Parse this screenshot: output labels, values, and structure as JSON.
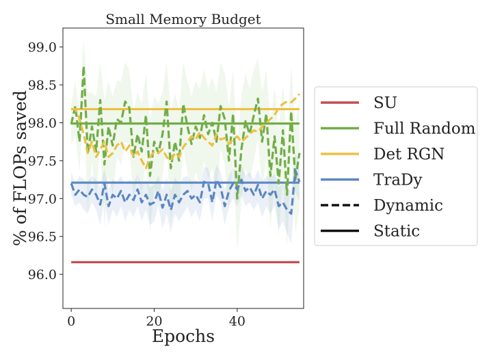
{
  "chart_data": {
    "type": "line",
    "title": "Small Memory Budget",
    "xlabel": "Epochs",
    "ylabel": "% of FLOPs saved",
    "xlim": [
      -2,
      56
    ],
    "ylim": [
      95.55,
      99.25
    ],
    "xticks": [
      0,
      20,
      40
    ],
    "xtick_labels": [
      "0",
      "20",
      "40"
    ],
    "yticks": [
      96.0,
      96.5,
      97.0,
      97.5,
      98.0,
      98.5,
      99.0
    ],
    "ytick_labels": [
      "96.0",
      "96.5",
      "97.0",
      "97.5",
      "98.0",
      "98.5",
      "99.0"
    ],
    "grid": false,
    "legend_position": "right-outside",
    "colors": {
      "SU": "#c44e52",
      "Full Random": "#70ad47",
      "Det RGN": "#edc044",
      "TraDy": "#5b86c2",
      "line_style_key": "#111111"
    },
    "legend": [
      {
        "label": "SU",
        "color": "#c44e52",
        "style": "solid"
      },
      {
        "label": "Full Random",
        "color": "#70ad47",
        "style": "solid"
      },
      {
        "label": "Det RGN",
        "color": "#edc044",
        "style": "solid"
      },
      {
        "label": "TraDy",
        "color": "#5b86c2",
        "style": "solid"
      },
      {
        "label": "Dynamic",
        "color": "#111111",
        "style": "dashed"
      },
      {
        "label": "Static",
        "color": "#111111",
        "style": "solid"
      }
    ],
    "static_series": [
      {
        "name": "SU",
        "style": "solid",
        "x": [
          0,
          55
        ],
        "y": [
          96.16,
          96.16
        ]
      },
      {
        "name": "Full Random",
        "style": "solid",
        "x": [
          0,
          55
        ],
        "y": [
          97.99,
          97.99
        ]
      },
      {
        "name": "Det RGN",
        "style": "solid",
        "x": [
          0,
          55
        ],
        "y": [
          98.18,
          98.18
        ]
      },
      {
        "name": "TraDy",
        "style": "solid",
        "x": [
          0,
          55
        ],
        "y": [
          97.21,
          97.21
        ]
      }
    ],
    "dynamic_series": [
      {
        "name": "Full Random",
        "style": "dashed",
        "x_start": 0,
        "x_step": 1,
        "y": [
          97.98,
          98.22,
          97.75,
          98.75,
          97.6,
          97.95,
          97.62,
          98.3,
          97.45,
          97.95,
          97.7,
          98.05,
          98.0,
          98.28,
          98.2,
          97.55,
          97.85,
          97.62,
          98.1,
          97.3,
          97.75,
          97.6,
          97.85,
          98.28,
          97.4,
          97.75,
          97.5,
          98.25,
          97.95,
          97.72,
          97.95,
          97.8,
          98.1,
          97.85,
          98.0,
          97.75,
          98.22,
          98.05,
          97.5,
          98.12,
          97.0,
          97.65,
          98.02,
          97.85,
          98.1,
          98.32,
          97.75,
          98.12,
          97.3,
          97.82,
          97.2,
          97.9,
          97.05,
          98.15,
          97.25,
          97.6
        ]
      },
      {
        "name": "Det RGN",
        "style": "dashed",
        "x_start": 0,
        "x_step": 1,
        "y": [
          98.18,
          98.18,
          98.05,
          97.85,
          97.6,
          97.75,
          97.55,
          97.65,
          97.75,
          97.55,
          97.6,
          97.7,
          97.75,
          97.62,
          97.7,
          97.55,
          97.62,
          97.5,
          97.4,
          97.55,
          97.62,
          97.6,
          97.65,
          97.55,
          97.5,
          97.6,
          97.55,
          97.68,
          97.75,
          97.82,
          97.78,
          97.88,
          97.8,
          97.75,
          97.7,
          97.85,
          97.78,
          97.8,
          97.72,
          97.78,
          97.82,
          97.75,
          97.8,
          97.85,
          97.9,
          97.88,
          97.95,
          98.0,
          98.05,
          98.1,
          98.2,
          98.25,
          98.28,
          98.27,
          98.32,
          98.38
        ]
      },
      {
        "name": "TraDy",
        "style": "dashed",
        "x_start": 0,
        "x_step": 1,
        "y": [
          97.2,
          97.05,
          97.12,
          97.05,
          97.02,
          97.12,
          97.05,
          96.92,
          97.2,
          96.9,
          97.05,
          97.0,
          97.1,
          96.95,
          97.05,
          96.98,
          97.12,
          96.95,
          97.05,
          96.92,
          96.95,
          97.1,
          96.88,
          97.05,
          96.85,
          97.05,
          96.95,
          97.05,
          97.1,
          97.0,
          97.05,
          96.95,
          97.22,
          97.2,
          96.95,
          97.25,
          97.15,
          96.9,
          97.1,
          97.2,
          97.12,
          97.25,
          97.1,
          97.15,
          97.05,
          97.18,
          97.0,
          97.1,
          97.05,
          97.12,
          96.9,
          96.95,
          96.85,
          96.8,
          97.37,
          97.22
        ]
      }
    ],
    "bands": [
      {
        "name": "Full Random",
        "color": "#70ad47",
        "opacity": 0.1,
        "lower": [
          97.7,
          97.85,
          97.35,
          98.25,
          96.8,
          97.5,
          96.95,
          97.75,
          96.6,
          97.3,
          97.05,
          97.55,
          97.45,
          97.75,
          97.7,
          96.95,
          97.3,
          97.0,
          97.55,
          96.55,
          97.15,
          96.95,
          97.3,
          97.75,
          96.65,
          97.1,
          96.85,
          97.7,
          97.35,
          97.1,
          97.35,
          97.15,
          97.5,
          97.25,
          97.4,
          97.1,
          97.65,
          97.45,
          96.8,
          97.55,
          96.3,
          96.95,
          97.4,
          97.25,
          97.5,
          97.8,
          97.1,
          97.55,
          96.6,
          97.2,
          96.5,
          97.3,
          96.35,
          97.55,
          96.55,
          96.85
        ],
        "upper": [
          98.25,
          98.55,
          98.15,
          99.1,
          98.4,
          98.4,
          98.35,
          98.8,
          98.3,
          98.55,
          98.35,
          98.55,
          98.55,
          98.8,
          98.7,
          98.15,
          98.4,
          98.25,
          98.65,
          98.05,
          98.35,
          98.25,
          98.4,
          98.8,
          98.15,
          98.4,
          98.15,
          98.8,
          98.55,
          98.35,
          98.55,
          98.45,
          98.7,
          98.45,
          98.6,
          98.4,
          98.8,
          98.65,
          98.2,
          98.7,
          97.7,
          98.35,
          98.65,
          98.45,
          98.7,
          98.85,
          98.4,
          98.7,
          98.0,
          98.45,
          97.9,
          98.5,
          97.75,
          98.75,
          97.95,
          98.35
        ]
      },
      {
        "name": "TraDy",
        "color": "#5b86c2",
        "opacity": 0.12,
        "lower": [
          97.05,
          96.9,
          96.95,
          96.85,
          96.8,
          96.95,
          96.85,
          96.65,
          97.0,
          96.65,
          96.85,
          96.75,
          96.9,
          96.7,
          96.85,
          96.75,
          96.9,
          96.7,
          96.85,
          96.65,
          96.7,
          96.9,
          96.6,
          96.8,
          96.55,
          96.8,
          96.7,
          96.8,
          96.9,
          96.75,
          96.85,
          96.7,
          97.0,
          97.0,
          96.7,
          97.05,
          96.95,
          96.65,
          96.9,
          97.0,
          96.9,
          97.05,
          96.9,
          96.95,
          96.85,
          96.95,
          96.75,
          96.9,
          96.8,
          96.9,
          96.6,
          96.7,
          96.55,
          96.4,
          97.1,
          96.95
        ],
        "upper": [
          97.35,
          97.2,
          97.3,
          97.25,
          97.22,
          97.3,
          97.25,
          97.15,
          97.4,
          97.12,
          97.25,
          97.22,
          97.3,
          97.18,
          97.25,
          97.2,
          97.32,
          97.18,
          97.25,
          97.15,
          97.18,
          97.3,
          97.12,
          97.28,
          97.1,
          97.28,
          97.18,
          97.28,
          97.3,
          97.22,
          97.25,
          97.18,
          97.42,
          97.4,
          97.18,
          97.45,
          97.35,
          97.12,
          97.3,
          97.4,
          97.32,
          97.45,
          97.3,
          97.35,
          97.25,
          97.38,
          97.22,
          97.3,
          97.28,
          97.32,
          97.15,
          97.2,
          97.12,
          97.1,
          97.6,
          97.45
        ]
      }
    ]
  }
}
